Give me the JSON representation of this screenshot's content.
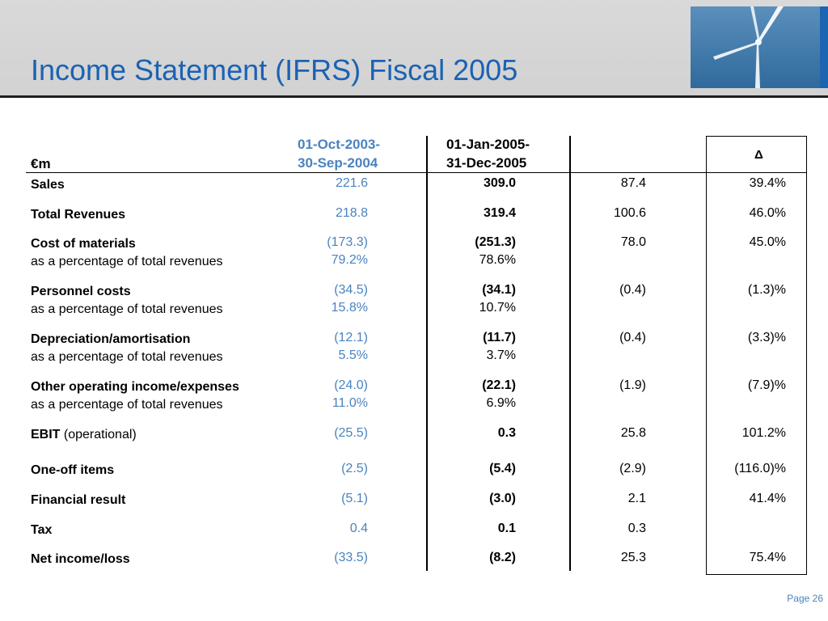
{
  "title": "Income Statement (IFRS) Fiscal 2005",
  "header": {
    "unit": "€m",
    "col1_line1": "01-Oct-2003-",
    "col1_line2": "30-Sep-2004",
    "col2_line1": "01-Jan-2005-",
    "col2_line2": "31-Dec-2005",
    "delta": "Δ"
  },
  "rows": {
    "sales": {
      "label": "Sales",
      "v1": "221.6",
      "v2": "309.0",
      "diff": "87.4",
      "pct": "39.4%"
    },
    "total_revenues": {
      "label": "Total Revenues",
      "v1": "218.8",
      "v2": "319.4",
      "diff": "100.6",
      "pct": "46.0%"
    },
    "cost_of_materials": {
      "label": "Cost of materials",
      "v1": "(173.3)",
      "v2": "(251.3)",
      "diff": "78.0",
      "pct": "45.0%",
      "sub_label": "as a percentage of total revenues",
      "sub_v1": "79.2%",
      "sub_v2": "78.6%"
    },
    "personnel_costs": {
      "label": "Personnel costs",
      "v1": "(34.5)",
      "v2": "(34.1)",
      "diff": "(0.4)",
      "pct": "(1.3)%",
      "sub_label": "as a percentage of total revenues",
      "sub_v1": "15.8%",
      "sub_v2": "10.7%"
    },
    "depreciation": {
      "label": "Depreciation/amortisation",
      "v1": "(12.1)",
      "v2": "(11.7)",
      "diff": "(0.4)",
      "pct": "(3.3)%",
      "sub_label": "as a percentage of total revenues",
      "sub_v1": "5.5%",
      "sub_v2": "3.7%"
    },
    "other_operating": {
      "label": "Other operating income/expenses",
      "v1": "(24.0)",
      "v2": "(22.1)",
      "diff": "(1.9)",
      "pct": "(7.9)%",
      "sub_label": "as a percentage of total revenues",
      "sub_v1": "11.0%",
      "sub_v2": "6.9%"
    },
    "ebit": {
      "label": "EBIT",
      "label_suffix": " (operational)",
      "v1": "(25.5)",
      "v2": "0.3",
      "diff": "25.8",
      "pct": "101.2%"
    },
    "one_off": {
      "label": "One-off items",
      "v1": "(2.5)",
      "v2": "(5.4)",
      "diff": "(2.9)",
      "pct": "(116.0)%"
    },
    "financial_result": {
      "label": "Financial result",
      "v1": "(5.1)",
      "v2": "(3.0)",
      "diff": "2.1",
      "pct": "41.4%"
    },
    "tax": {
      "label": "Tax",
      "v1": "0.4",
      "v2": "0.1",
      "diff": "0.3",
      "pct": ""
    },
    "net_income": {
      "label": "Net income/loss",
      "v1": "(33.5)",
      "v2": "(8.2)",
      "diff": "25.3",
      "pct": "75.4%"
    }
  },
  "page_label": "Page 26",
  "colors": {
    "title": "#1a62b4",
    "period1_values": "#4a83bf",
    "header_band": "#d6d6d6",
    "photo_sky": "#3d78a9"
  }
}
